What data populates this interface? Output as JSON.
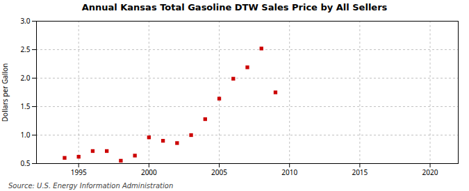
{
  "chart_data": {
    "type": "scatter",
    "title": "Annual Kansas Total Gasoline DTW Sales Price by All Sellers",
    "ylabel": "Dollars per Gallon",
    "source": "Source: U.S. Energy Information Administration",
    "x": [
      1994,
      1995,
      1996,
      1997,
      1998,
      1999,
      2000,
      2001,
      2002,
      2003,
      2004,
      2005,
      2006,
      2007,
      2008,
      2009
    ],
    "values": [
      0.6,
      0.62,
      0.72,
      0.72,
      0.55,
      0.64,
      0.96,
      0.9,
      0.86,
      1.0,
      1.28,
      1.64,
      1.99,
      2.19,
      2.52,
      1.75
    ],
    "color": "#cc0000",
    "marker": "square",
    "xlim": [
      1992,
      2022
    ],
    "ylim": [
      0.5,
      3.0
    ],
    "xticks": [
      1995,
      2000,
      2005,
      2010,
      2015,
      2020
    ],
    "yticks": [
      0.5,
      {
        "value": 1,
        "label": "1.0"
      },
      1.5,
      {
        "value": 2,
        "label": "2.0"
      },
      2.5,
      {
        "value": 3,
        "label": "3.0"
      }
    ],
    "grid": true
  }
}
